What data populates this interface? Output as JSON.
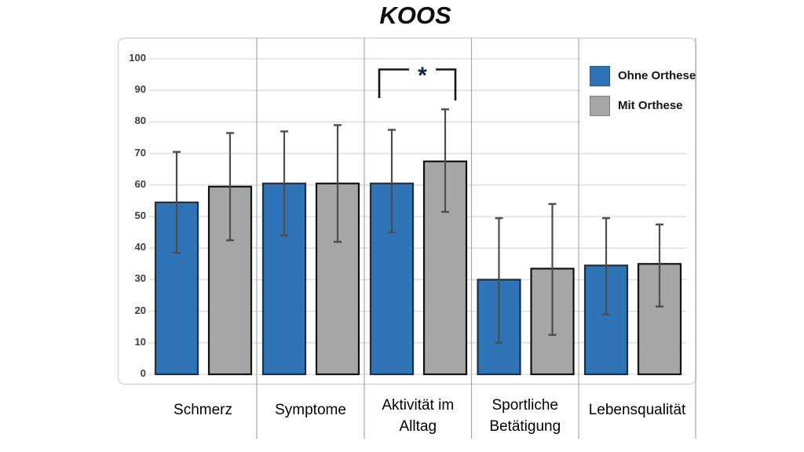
{
  "title": "KOOS",
  "colors": {
    "background": "#ffffff",
    "blue": "#2E74B6",
    "blue_border": "#1C2F4A",
    "gray": "#A6A6A6",
    "gray_border": "#111111",
    "error_bar": "#4D4D4D",
    "gridline": "#D9D9D9",
    "separator": "#A8A8A8",
    "chart_border": "#D4D4D4",
    "axis_text": "#3D3D3D",
    "category_text": "#000000",
    "significance_color": "#14233C"
  },
  "legend": {
    "items": [
      {
        "label": "Ohne Orthese",
        "color": "#2E74B6"
      },
      {
        "label": "Mit Orthese",
        "color": "#A6A6A6"
      }
    ]
  },
  "chart_data": {
    "type": "bar",
    "title": "KOOS",
    "categories": [
      "Schmerz",
      "Symptome",
      "Aktivität im Alltag",
      "Sportliche Betätigung",
      "Lebensqualität"
    ],
    "category_display_lines": [
      [
        "Schmerz"
      ],
      [
        "Symptome"
      ],
      [
        "Aktivität im",
        "Alltag"
      ],
      [
        "Sportliche",
        "Betätigung"
      ],
      [
        "Lebensqualität"
      ]
    ],
    "series": [
      {
        "name": "Ohne Orthese",
        "color": "#2E74B6",
        "border": "#1C2F4A",
        "values": [
          54.5,
          60.5,
          60.5,
          30,
          34.5
        ],
        "error_low": [
          38.5,
          44,
          45,
          10,
          19
        ],
        "error_high": [
          70.5,
          77,
          77.5,
          49.5,
          49.5
        ]
      },
      {
        "name": "Mit Orthese",
        "color": "#A6A6A6",
        "border": "#111111",
        "values": [
          59.5,
          60.5,
          67.5,
          33.5,
          35
        ],
        "error_low": [
          42.5,
          42,
          51.5,
          12.5,
          21.5
        ],
        "error_high": [
          76.5,
          79,
          84,
          54,
          47.5
        ]
      }
    ],
    "xlabel": "",
    "ylabel": "",
    "ylim": [
      0,
      100
    ],
    "yticks": [
      0,
      10,
      20,
      30,
      40,
      50,
      60,
      70,
      80,
      90,
      100
    ],
    "grid": true,
    "error_bars": true,
    "legend_position": "top-right",
    "significance": {
      "category": "Aktivität im Alltag",
      "category_index": 2,
      "label": "*"
    }
  }
}
